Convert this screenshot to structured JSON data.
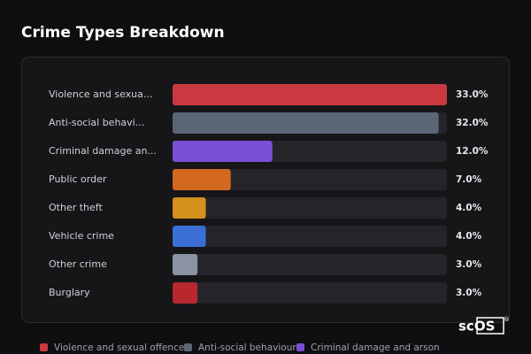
{
  "chart_data": {
    "type": "hbar",
    "title": "Crime Types Breakdown",
    "categories": [
      "Violence and sexua...",
      "Anti-social behavi...",
      "Criminal damage an...",
      "Public order",
      "Other theft",
      "Vehicle crime",
      "Other crime",
      "Burglary"
    ],
    "values": [
      33,
      32,
      12,
      7,
      4,
      4,
      3,
      3
    ],
    "value_labels": [
      "33.0%",
      "32.0%",
      "12.0%",
      "7.0%",
      "4.0%",
      "4.0%",
      "3.0%",
      "3.0%"
    ],
    "colors": [
      "#c9393f",
      "#5b6675",
      "#7a4fd6",
      "#d2691e",
      "#d4901c",
      "#3a6fd4",
      "#8a93a3",
      "#b8282c"
    ],
    "xlim": [
      0,
      33
    ],
    "legend": [
      {
        "name": "Violence and sexual offences",
        "color": "#c9393f"
      },
      {
        "name": "Anti-social behaviour",
        "color": "#5b6675"
      },
      {
        "name": "Criminal damage and arson",
        "color": "#7a4fd6"
      }
    ]
  },
  "watermark": "scOS",
  "watermark_mark": "®"
}
